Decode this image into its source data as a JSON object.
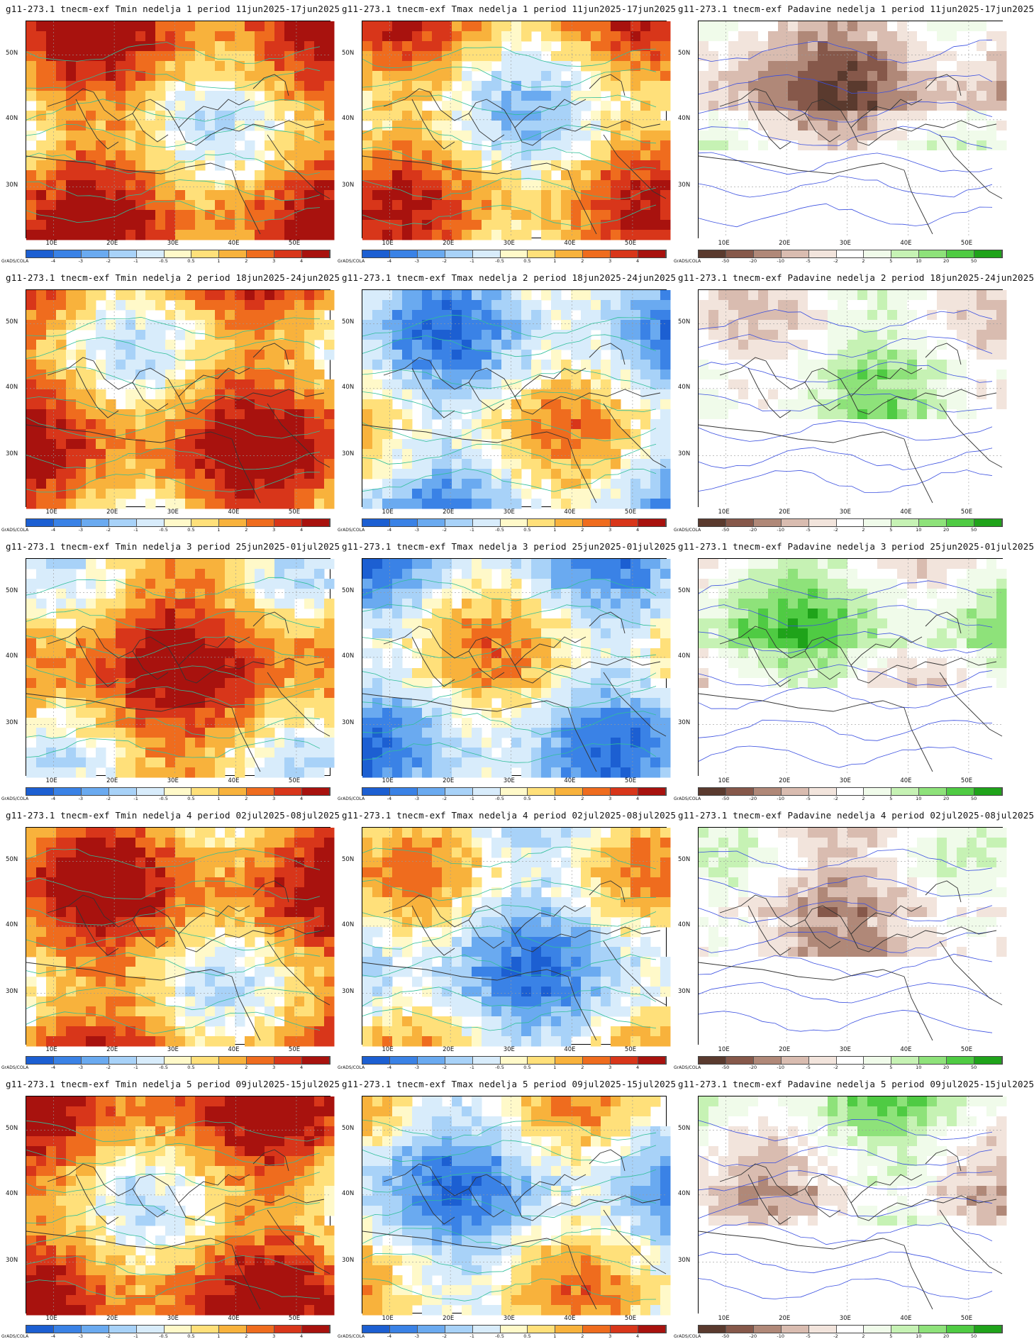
{
  "colorbars": {
    "temperature": {
      "colors": [
        "#1c5fd2",
        "#3a82e6",
        "#6aaaf0",
        "#a8d2f8",
        "#d8ecfb",
        "#fff9c9",
        "#ffe07a",
        "#f8b23c",
        "#ef6c1e",
        "#d8361a",
        "#a8120e"
      ],
      "ticks": [
        "-4",
        "-3",
        "-2",
        "-1",
        "-0.5",
        "0.5",
        "1",
        "2",
        "3",
        "4"
      ]
    },
    "precipitation": {
      "colors": [
        "#5a3a2e",
        "#86584a",
        "#b08878",
        "#d9bcb0",
        "#f2e4dc",
        "#ffffff",
        "#f0fbea",
        "#c6f2b4",
        "#8ee27a",
        "#4fcb43",
        "#1fa31a"
      ],
      "ticks": [
        "-50",
        "-20",
        "-10",
        "-5",
        "-2",
        "2",
        "5",
        "10",
        "20",
        "50"
      ]
    }
  },
  "grads_label": "GrADS/COLA",
  "lat_labels": [
    "50N",
    "40N",
    "30N"
  ],
  "lon_labels": [
    "10E",
    "20E",
    "30E",
    "40E",
    "50E"
  ],
  "panels": [
    {
      "title": "g11-273.1 tnecm-exf Tmin nedelja 1 period 11jun2025-17jun2025",
      "kind": "temperature",
      "var": "tmin",
      "week": 1
    },
    {
      "title": "g11-273.1 tnecm-exf Tmax nedelja 1 period 11jun2025-17jun2025",
      "kind": "temperature",
      "var": "tmax",
      "week": 1
    },
    {
      "title": "g11-273.1 tnecm-exf Padavine nedelja 1 period 11jun2025-17jun2025",
      "kind": "precipitation",
      "var": "prec",
      "week": 1
    },
    {
      "title": "g11-273.1 tnecm-exf Tmin nedelja 2 period 18jun2025-24jun2025",
      "kind": "temperature",
      "var": "tmin",
      "week": 2
    },
    {
      "title": "g11-273.1 tnecm-exf Tmax nedelja 2 period 18jun2025-24jun2025",
      "kind": "temperature",
      "var": "tmax",
      "week": 2
    },
    {
      "title": "g11-273.1 tnecm-exf Padavine nedelja 2 period 18jun2025-24jun2025",
      "kind": "precipitation",
      "var": "prec",
      "week": 2
    },
    {
      "title": "g11-273.1 tnecm-exf Tmin nedelja 3 period 25jun2025-01jul2025",
      "kind": "temperature",
      "var": "tmin",
      "week": 3
    },
    {
      "title": "g11-273.1 tnecm-exf Tmax nedelja 3 period 25jun2025-01jul2025",
      "kind": "temperature",
      "var": "tmax",
      "week": 3
    },
    {
      "title": "g11-273.1 tnecm-exf Padavine nedelja 3 period 25jun2025-01jul2025",
      "kind": "precipitation",
      "var": "prec",
      "week": 3
    },
    {
      "title": "g11-273.1 tnecm-exf Tmin nedelja 4 period 02jul2025-08jul2025",
      "kind": "temperature",
      "var": "tmin",
      "week": 4
    },
    {
      "title": "g11-273.1 tnecm-exf Tmax nedelja 4 period 02jul2025-08jul2025",
      "kind": "temperature",
      "var": "tmax",
      "week": 4
    },
    {
      "title": "g11-273.1 tnecm-exf Padavine nedelja 4 period 02jul2025-08jul2025",
      "kind": "precipitation",
      "var": "prec",
      "week": 4
    },
    {
      "title": "g11-273.1 tnecm-exf Tmin nedelja 5 period 09jul2025-15jul2025",
      "kind": "temperature",
      "var": "tmin",
      "week": 5
    },
    {
      "title": "g11-273.1 tnecm-exf Tmax nedelja 5 period 09jul2025-15jul2025",
      "kind": "temperature",
      "var": "tmax",
      "week": 5
    },
    {
      "title": "g11-273.1 tnecm-exf Padavine nedelja 5 period 09jul2025-15jul2025",
      "kind": "precipitation",
      "var": "prec",
      "week": 5
    }
  ]
}
